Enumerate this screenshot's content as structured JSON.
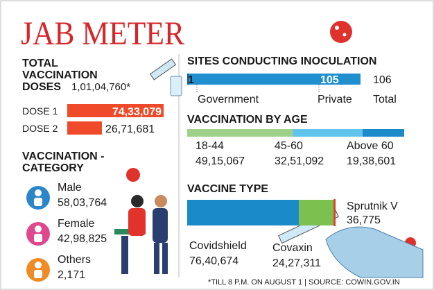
{
  "title": "JAB METER",
  "total": {
    "label": [
      "TOTAL",
      "VACCINATION",
      "DOSES"
    ],
    "value": "1,01,04,760*"
  },
  "category": {
    "title": [
      "VACCINATION -",
      "CATEGORY"
    ],
    "items": [
      {
        "name": "Male",
        "value": "58,03,764"
      },
      {
        "name": "Female",
        "value": "42,98,825"
      },
      {
        "name": "Others",
        "value": "2,171"
      }
    ]
  },
  "footnote": "*TILL 8 P.M. ON AUGUST 1 | SOURCE: COWIN.GOV.IN",
  "chart_data": [
    {
      "type": "bar",
      "categories": [
        "DOSE 1",
        "DOSE 2"
      ],
      "values": [
        7433079,
        2671681
      ],
      "value_labels": [
        "74,33,079",
        "26,71,681"
      ],
      "color": "#ef4b2a"
    },
    {
      "type": "stacked-bar",
      "title": "SITES CONDUCTING INOCULATION",
      "categories": [
        "Government",
        "Private",
        "Total"
      ],
      "values": [
        1,
        105,
        106
      ],
      "colors": [
        "#0d5f96",
        "#1f8fd0"
      ]
    },
    {
      "type": "stacked-bar",
      "title": "VACCINATION BY AGE",
      "categories": [
        "18-44",
        "45-60",
        "Above 60"
      ],
      "values": [
        4915067,
        3251092,
        1938601
      ],
      "value_labels": [
        "49,15,067",
        "32,51,092",
        "19,38,601"
      ],
      "colors": [
        "#9ed08b",
        "#5fc3ec",
        "#1b8ac9"
      ]
    },
    {
      "type": "stacked-bar",
      "title": "VACCINE TYPE",
      "categories": [
        "Covidshield",
        "Covaxin",
        "Sprutnik V"
      ],
      "values": [
        7640674,
        2427311,
        36775
      ],
      "value_labels": [
        "76,40,674",
        "24,27,311",
        "36,775"
      ],
      "colors": [
        "#1b8ac9",
        "#7cc04f",
        "#e53a2b"
      ]
    }
  ]
}
